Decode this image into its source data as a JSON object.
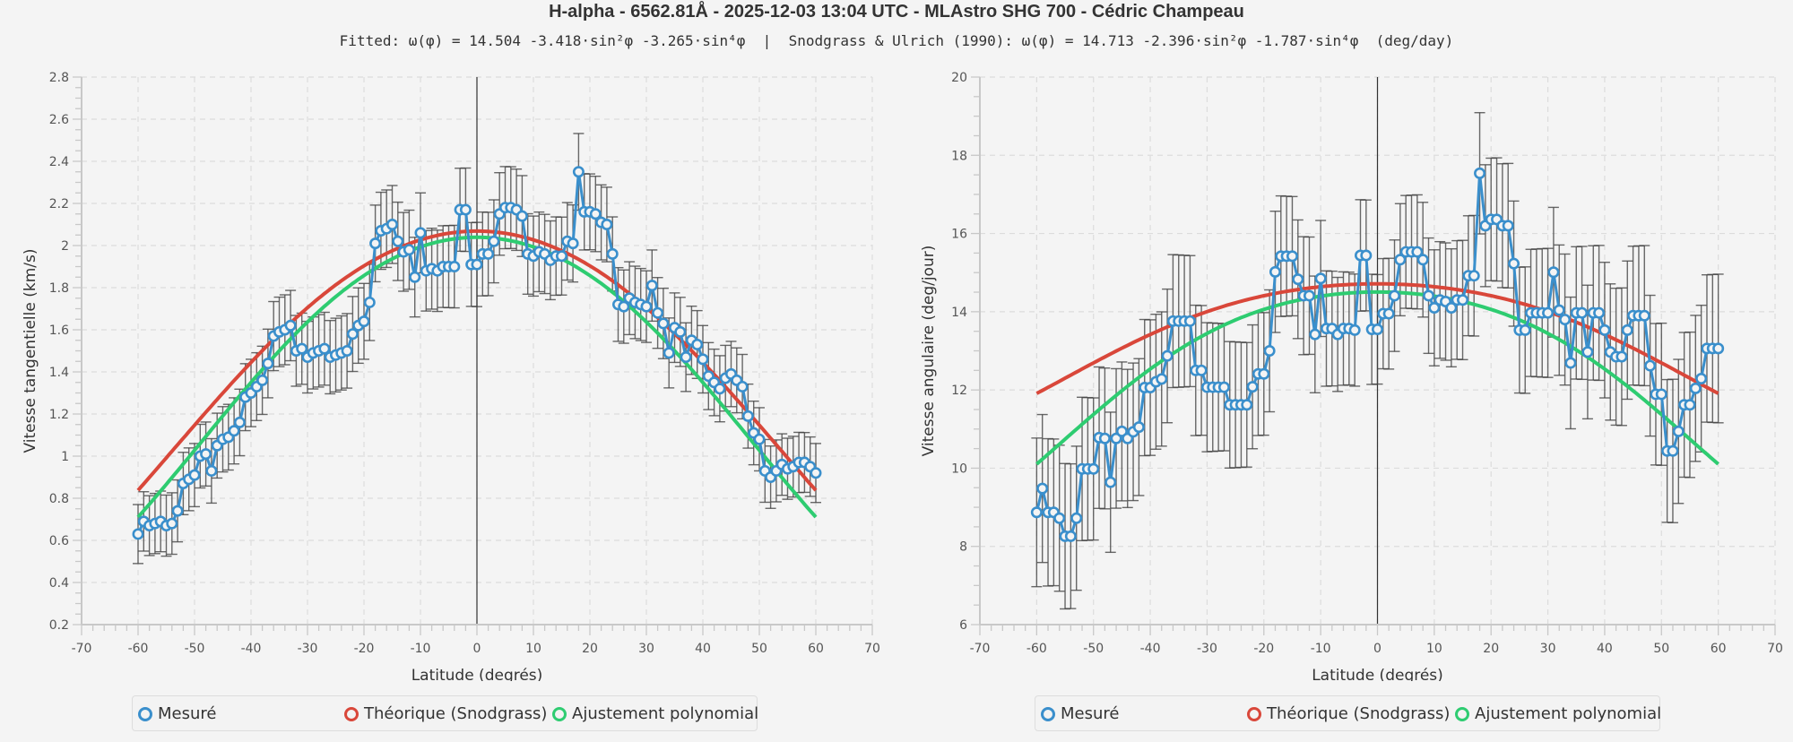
{
  "header": {
    "title": "H-alpha - 6562.81Å - 2025-12-03 13:04 UTC - MLAstro SHG 700 - Cédric Champeau",
    "subtitle": "Fitted: ω(φ) = 14.504 -3.418·sin²φ -3.265·sin⁴φ  |  Snodgrass & Ulrich (1990): ω(φ) = 14.713 -2.396·sin²φ -1.787·sin⁴φ  (deg/day)"
  },
  "colors": {
    "measured": "#3a8fcc",
    "theoretical": "#d9473a",
    "fit": "#2ecc71",
    "errorbar": "#444444"
  },
  "legend": {
    "measured": "Mesuré",
    "theoretical": "Théorique (Snodgrass)",
    "fit": "Ajustement polynomial"
  },
  "chart_data": [
    {
      "type": "line",
      "xlabel": "Latitude (degrés)",
      "ylabel": "Vitesse tangentielle (km/s)",
      "xlim": [
        -70,
        70
      ],
      "ylim": [
        0.2,
        2.8
      ],
      "xticks": [
        -70,
        -60,
        -50,
        -40,
        -30,
        -20,
        -10,
        0,
        10,
        20,
        30,
        40,
        50,
        60,
        70
      ],
      "yticks": [
        0.2,
        0.4,
        0.6,
        0.8,
        1,
        1.2,
        1.4,
        1.6,
        1.8,
        2,
        2.2,
        2.4,
        2.6,
        2.8
      ],
      "ytick_labels": [
        "0.2",
        "0.4",
        "0.6",
        "0.8",
        "1",
        "1.2",
        "1.4",
        "1.6",
        "1.8",
        "2",
        "2.2",
        "2.4",
        "2.6",
        "2.8"
      ],
      "grid": true,
      "legend_position": "bottom",
      "x_start": -60,
      "x_step": 1,
      "measured": [
        0.63,
        0.69,
        0.67,
        0.68,
        0.69,
        0.67,
        0.68,
        0.74,
        0.87,
        0.89,
        0.91,
        1.0,
        1.01,
        0.93,
        1.05,
        1.08,
        1.09,
        1.12,
        1.16,
        1.28,
        1.3,
        1.33,
        1.36,
        1.44,
        1.57,
        1.59,
        1.6,
        1.62,
        1.5,
        1.51,
        1.47,
        1.49,
        1.5,
        1.51,
        1.47,
        1.48,
        1.49,
        1.5,
        1.58,
        1.62,
        1.64,
        1.73,
        2.01,
        2.07,
        2.08,
        2.1,
        2.02,
        1.97,
        1.98,
        1.85,
        2.06,
        1.88,
        1.89,
        1.88,
        1.9,
        1.9,
        1.9,
        2.17,
        2.17,
        1.91,
        1.91,
        1.96,
        1.96,
        2.02,
        2.15,
        2.18,
        2.18,
        2.17,
        2.14,
        1.96,
        1.95,
        1.97,
        1.96,
        1.93,
        1.95,
        1.95,
        2.02,
        2.01,
        2.35,
        2.16,
        2.16,
        2.15,
        2.11,
        2.1,
        1.96,
        1.72,
        1.71,
        1.75,
        1.73,
        1.72,
        1.71,
        1.81,
        1.68,
        1.63,
        1.49,
        1.61,
        1.59,
        1.47,
        1.55,
        1.53,
        1.46,
        1.38,
        1.35,
        1.32,
        1.37,
        1.39,
        1.36,
        1.33,
        1.19,
        1.11,
        1.08,
        0.93,
        0.9,
        0.93,
        0.96,
        0.94,
        0.95,
        0.97,
        0.97,
        0.95,
        0.92
      ],
      "error": 0.14,
      "error_mid": 0.2,
      "fit_coeffs": [
        14.504,
        -3.418,
        -3.265
      ],
      "theory_coeffs": [
        14.713,
        -2.396,
        -1.787
      ],
      "scale": "tangential_km_s"
    },
    {
      "type": "line",
      "xlabel": "Latitude (degrés)",
      "ylabel": "Vitesse angulaire (deg/jour)",
      "xlim": [
        -70,
        70
      ],
      "ylim": [
        6,
        20
      ],
      "xticks": [
        -70,
        -60,
        -50,
        -40,
        -30,
        -20,
        -10,
        0,
        10,
        20,
        30,
        40,
        50,
        60,
        70
      ],
      "yticks": [
        6,
        8,
        10,
        12,
        14,
        16,
        18,
        20
      ],
      "ytick_labels": [
        "6",
        "8",
        "10",
        "12",
        "14",
        "16",
        "18",
        "20"
      ],
      "grid": true,
      "legend_position": "bottom",
      "x_start": -60,
      "x_step": 1,
      "measured": [
        8.87,
        9.48,
        8.87,
        8.87,
        8.72,
        8.26,
        8.26,
        8.72,
        9.98,
        9.98,
        9.98,
        10.78,
        10.76,
        9.64,
        10.76,
        10.94,
        10.76,
        10.93,
        11.05,
        12.06,
        12.06,
        12.21,
        12.28,
        12.87,
        13.76,
        13.76,
        13.76,
        13.76,
        12.5,
        12.5,
        12.07,
        12.07,
        12.07,
        12.07,
        11.62,
        11.62,
        11.62,
        11.62,
        12.08,
        12.41,
        12.41,
        13.0,
        15.02,
        15.42,
        15.42,
        15.42,
        14.83,
        14.41,
        14.41,
        13.42,
        14.85,
        13.57,
        13.57,
        13.42,
        13.57,
        13.57,
        13.53,
        15.44,
        15.44,
        13.55,
        13.55,
        13.95,
        13.95,
        14.41,
        15.33,
        15.53,
        15.53,
        15.53,
        15.33,
        14.41,
        14.1,
        14.3,
        14.26,
        14.1,
        14.3,
        14.3,
        14.92,
        14.92,
        17.54,
        16.2,
        16.36,
        16.36,
        16.2,
        16.2,
        15.23,
        13.53,
        13.53,
        13.97,
        13.97,
        13.97,
        13.97,
        15.01,
        14.04,
        13.8,
        12.69,
        13.97,
        13.97,
        12.97,
        13.97,
        13.97,
        13.53,
        12.97,
        12.85,
        12.85,
        13.53,
        13.9,
        13.9,
        13.9,
        12.62,
        11.89,
        11.89,
        10.44,
        10.44,
        10.94,
        11.62,
        11.62,
        12.04,
        12.29,
        13.06,
        13.06,
        13.06
      ],
      "error": 1.9,
      "error_mid": 1.4,
      "fit_coeffs": [
        14.504,
        -3.418,
        -3.265
      ],
      "theory_coeffs": [
        14.713,
        -2.396,
        -1.787
      ],
      "scale": "angular_deg_day"
    }
  ]
}
